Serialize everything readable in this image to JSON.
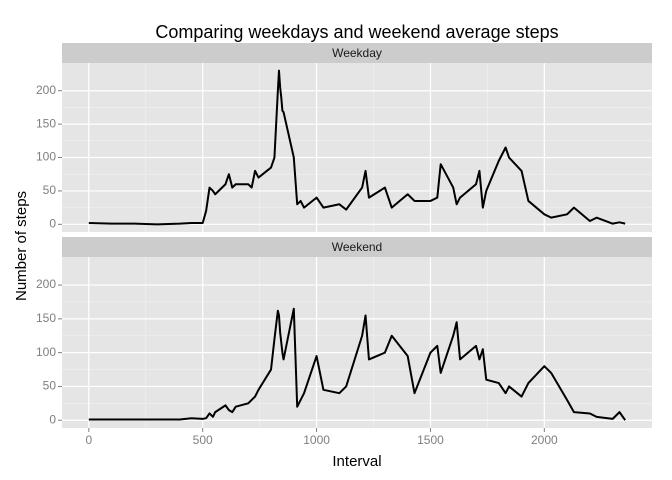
{
  "chart_data": {
    "type": "line",
    "title": "Comparing weekdays and weekend average steps",
    "xlabel": "Interval",
    "ylabel": "Number of steps",
    "xlim": [
      -117.75,
      2472.75
    ],
    "ylim": [
      -11.5,
      241.5
    ],
    "xticks": [
      0,
      500,
      1000,
      1500,
      2000
    ],
    "yticks": [
      0,
      50,
      100,
      150,
      200
    ],
    "grid": true,
    "x": [
      0,
      100,
      200,
      300,
      400,
      450,
      500,
      515,
      530,
      545,
      555,
      600,
      615,
      630,
      645,
      700,
      715,
      730,
      745,
      800,
      815,
      830,
      835,
      840,
      845,
      850,
      855,
      900,
      915,
      930,
      945,
      1000,
      1030,
      1100,
      1130,
      1200,
      1215,
      1230,
      1300,
      1330,
      1400,
      1430,
      1500,
      1530,
      1545,
      1600,
      1615,
      1630,
      1700,
      1715,
      1730,
      1745,
      1800,
      1830,
      1845,
      1900,
      1930,
      2000,
      2030,
      2100,
      2130,
      2200,
      2230,
      2300,
      2330,
      2355
    ],
    "series": [
      {
        "name": "Weekday",
        "color": "#000000",
        "values": [
          2,
          1,
          1,
          0,
          1,
          2,
          2,
          20,
          55,
          50,
          45,
          60,
          75,
          55,
          60,
          60,
          55,
          80,
          70,
          85,
          100,
          200,
          230,
          205,
          190,
          170,
          168,
          100,
          30,
          35,
          25,
          40,
          25,
          30,
          22,
          55,
          80,
          40,
          55,
          25,
          45,
          35,
          35,
          40,
          90,
          55,
          30,
          40,
          60,
          80,
          25,
          50,
          95,
          115,
          100,
          80,
          35,
          15,
          10,
          15,
          25,
          5,
          10,
          1,
          3,
          1
        ]
      },
      {
        "name": "Weekend",
        "color": "#000000",
        "values": [
          1,
          1,
          1,
          1,
          1,
          3,
          2,
          3,
          10,
          5,
          12,
          22,
          15,
          12,
          20,
          25,
          30,
          35,
          45,
          75,
          120,
          162,
          155,
          130,
          115,
          100,
          90,
          165,
          20,
          30,
          40,
          95,
          45,
          40,
          50,
          125,
          155,
          90,
          100,
          125,
          95,
          40,
          100,
          110,
          70,
          125,
          145,
          90,
          110,
          90,
          105,
          60,
          55,
          40,
          50,
          35,
          55,
          80,
          70,
          30,
          12,
          10,
          5,
          2,
          12,
          0
        ]
      }
    ]
  }
}
